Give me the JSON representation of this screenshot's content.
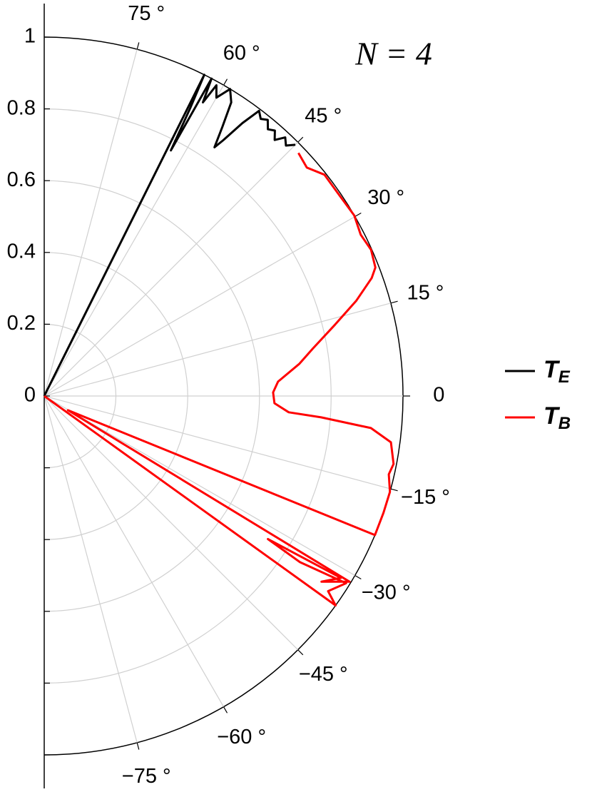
{
  "chart_data": {
    "type": "polar",
    "annotation": "N = 4",
    "rlim": [
      0,
      1
    ],
    "thetalim": [
      -90,
      90
    ],
    "rticks": [
      0,
      0.2,
      0.4,
      0.6,
      0.8,
      1
    ],
    "thetaticks": [
      {
        "value": -75,
        "label": "−75 °"
      },
      {
        "value": -60,
        "label": "−60 °"
      },
      {
        "value": -45,
        "label": "−45 °"
      },
      {
        "value": -30,
        "label": "−30 °"
      },
      {
        "value": -15,
        "label": "−15 °"
      },
      0,
      {
        "value": 15,
        "label": "15 °"
      },
      {
        "value": 30,
        "label": "30 °"
      },
      {
        "value": 45,
        "label": "45 °"
      },
      {
        "value": 60,
        "label": "60 °"
      },
      {
        "value": 75,
        "label": "75 °"
      }
    ],
    "grid": true,
    "legend": "right",
    "series": [
      {
        "name": "T",
        "subscript": "E",
        "color": "#000000",
        "theta": [
          45,
          46,
          47,
          48,
          49,
          50,
          51,
          52,
          53,
          54,
          55,
          55.6,
          56.5,
          57.5,
          58.8,
          60,
          61,
          61.6,
          62.2,
          62.7,
          63.1,
          63.5,
          63.6
        ],
        "r": [
          0.99,
          0.97,
          0.985,
          0.96,
          0.98,
          0.97,
          0.99,
          0.98,
          0.995,
          0.94,
          0.87,
          0.84,
          0.9,
          0.97,
          1.0,
          0.96,
          0.99,
          0.93,
          1.0,
          0.77,
          0.9,
          1.0,
          0
        ]
      },
      {
        "name": "T",
        "subscript": "B",
        "color": "#ff0000",
        "theta": [
          43.7,
          41,
          38.3,
          34,
          30.2,
          27,
          24.1,
          21.2,
          19.8,
          17,
          13.8,
          10,
          7.2,
          3.5,
          0.9,
          -1.8,
          -3.8,
          -4.4,
          -5.6,
          -7.6,
          -11,
          -12.8,
          -15.5,
          -19,
          -22.8,
          -31,
          -31.3,
          -33.8,
          -31.5,
          -32.6,
          -33,
          -31.8,
          -34.5,
          -35.7,
          -35.8
        ],
        "r": [
          0.98,
          0.97,
          0.995,
          0.995,
          1.0,
          0.99,
          0.998,
          0.99,
          0.97,
          0.91,
          0.835,
          0.76,
          0.717,
          0.653,
          0.638,
          0.642,
          0.683,
          0.774,
          0.915,
          0.975,
          0.992,
          0.985,
          1.0,
          1.0,
          1.0,
          0.077,
          0.996,
          0.93,
          0.97,
          0.74,
          0.85,
          0.99,
          0.96,
          1.0,
          0
        ]
      }
    ]
  }
}
